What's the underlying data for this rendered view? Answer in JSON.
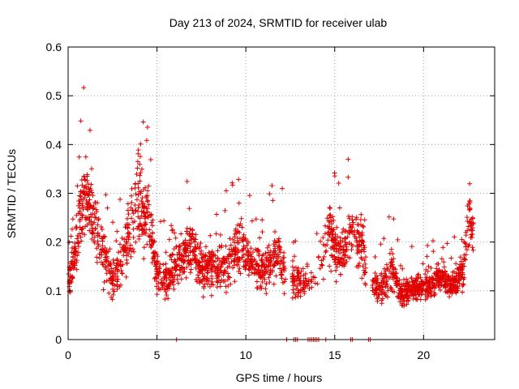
{
  "chart_data": {
    "type": "scatter",
    "title": "Day 213 of 2024, SRMTID for receiver ulab",
    "xlabel": "GPS time / hours",
    "ylabel": "SRMTID / TECUs",
    "xlim": [
      0,
      24
    ],
    "ylim": [
      0,
      0.6
    ],
    "xticks": [
      0,
      5,
      10,
      15,
      20
    ],
    "yticks": [
      0,
      0.1,
      0.2,
      0.3,
      0.4,
      0.5,
      0.6
    ],
    "grid": true,
    "marker": "+",
    "color": "#e00000",
    "series": [
      {
        "name": "ulab",
        "envelope": [
          {
            "x": 0.0,
            "y": 0.11,
            "spread": 0.05
          },
          {
            "x": 0.5,
            "y": 0.2,
            "spread": 0.08
          },
          {
            "x": 0.9,
            "y": 0.3,
            "spread": 0.12
          },
          {
            "x": 1.4,
            "y": 0.25,
            "spread": 0.1
          },
          {
            "x": 2.0,
            "y": 0.17,
            "spread": 0.08
          },
          {
            "x": 2.6,
            "y": 0.12,
            "spread": 0.06
          },
          {
            "x": 3.3,
            "y": 0.2,
            "spread": 0.12
          },
          {
            "x": 4.0,
            "y": 0.3,
            "spread": 0.14
          },
          {
            "x": 4.5,
            "y": 0.25,
            "spread": 0.1
          },
          {
            "x": 5.0,
            "y": 0.14,
            "spread": 0.06
          },
          {
            "x": 5.6,
            "y": 0.12,
            "spread": 0.05
          },
          {
            "x": 6.2,
            "y": 0.16,
            "spread": 0.06
          },
          {
            "x": 7.0,
            "y": 0.19,
            "spread": 0.08
          },
          {
            "x": 7.6,
            "y": 0.14,
            "spread": 0.07
          },
          {
            "x": 8.3,
            "y": 0.16,
            "spread": 0.08
          },
          {
            "x": 9.0,
            "y": 0.15,
            "spread": 0.07
          },
          {
            "x": 9.7,
            "y": 0.2,
            "spread": 0.08
          },
          {
            "x": 10.4,
            "y": 0.15,
            "spread": 0.06
          },
          {
            "x": 11.0,
            "y": 0.14,
            "spread": 0.06
          },
          {
            "x": 11.8,
            "y": 0.18,
            "spread": 0.08
          },
          {
            "x": 12.5,
            "y": 0.12,
            "spread": 0.06
          },
          {
            "x": 13.2,
            "y": 0.12,
            "spread": 0.05
          },
          {
            "x": 14.0,
            "y": 0.13,
            "spread": 0.05
          },
          {
            "x": 14.7,
            "y": 0.22,
            "spread": 0.1
          },
          {
            "x": 15.3,
            "y": 0.17,
            "spread": 0.07
          },
          {
            "x": 16.0,
            "y": 0.22,
            "spread": 0.08
          },
          {
            "x": 16.5,
            "y": 0.2,
            "spread": 0.08
          },
          {
            "x": 16.9,
            "y": 0.12,
            "spread": 0.04
          },
          {
            "x": 17.5,
            "y": 0.1,
            "spread": 0.04
          },
          {
            "x": 18.2,
            "y": 0.14,
            "spread": 0.07
          },
          {
            "x": 18.8,
            "y": 0.09,
            "spread": 0.04
          },
          {
            "x": 19.5,
            "y": 0.11,
            "spread": 0.04
          },
          {
            "x": 20.3,
            "y": 0.11,
            "spread": 0.04
          },
          {
            "x": 21.0,
            "y": 0.13,
            "spread": 0.05
          },
          {
            "x": 21.6,
            "y": 0.11,
            "spread": 0.04
          },
          {
            "x": 22.2,
            "y": 0.14,
            "spread": 0.06
          },
          {
            "x": 22.6,
            "y": 0.26,
            "spread": 0.12
          },
          {
            "x": 22.8,
            "y": 0.22,
            "spread": 0.05
          }
        ],
        "point_count": 2400,
        "zero_points_x": [
          6.1,
          12.3,
          12.7,
          12.8,
          12.9,
          13.5,
          13.6,
          13.7,
          13.8,
          13.9,
          14.0,
          14.1,
          14.5,
          15.9,
          16.0,
          16.9,
          17.0
        ]
      }
    ]
  }
}
